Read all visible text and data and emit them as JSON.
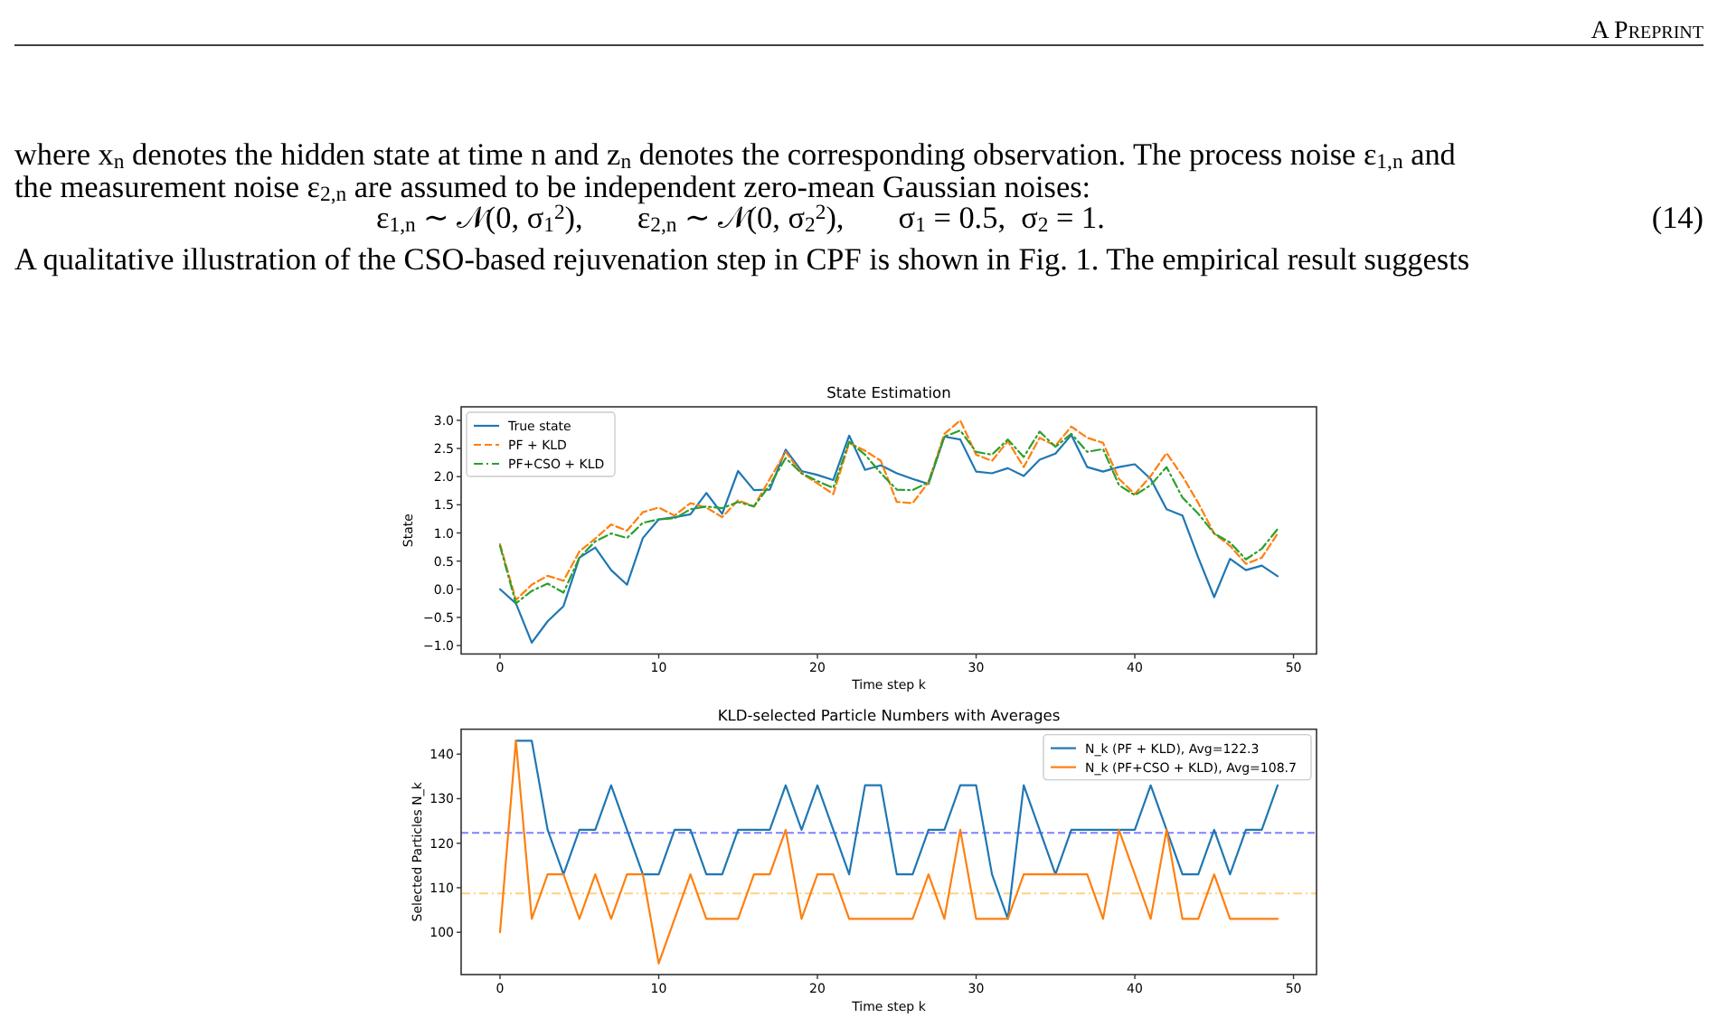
{
  "chart_data": [
    {
      "type": "line",
      "title": "State Estimation",
      "xlabel": "Time step k",
      "ylabel": "State",
      "annotations": [
        "A Preprint",
        "where x$_{n}$ denotes the hidden state at time n and z$_{n}$ denotes the corresponding observation. The process noise ε$_{1,n}$ and",
        "the measurement noise ε$_{2,n}$ are assumed to be independent zero-mean Gaussian noises:",
        "ε$_{1,n}$ ∼ 𝒩(0, σ$_{1}$$^{2}$),       ε$_{2,n}$ ∼ 𝒩(0, σ$_{2}$$^{2}$),       σ$_{1}$ = 0.5,  σ$_{2}$ = 1.",
        "(14)",
        "A qualitative illustration of the CSO-based rejuvenation step in CPF is shown in Fig. 1. The empirical result suggests"
      ],
      "x": [
        0,
        1,
        2,
        3,
        4,
        5,
        6,
        7,
        8,
        9,
        10,
        11,
        12,
        13,
        14,
        15,
        16,
        17,
        18,
        19,
        20,
        21,
        22,
        23,
        24,
        25,
        26,
        27,
        28,
        29,
        30,
        31,
        32,
        33,
        34,
        35,
        36,
        37,
        38,
        39,
        40,
        41,
        42,
        43,
        44,
        45,
        46,
        47,
        48,
        49
      ],
      "xlim": [
        -2.45,
        51.45
      ],
      "xticks": [
        0,
        10,
        20,
        30,
        40,
        50
      ],
      "ylim": [
        -1.15,
        3.24
      ],
      "yticks": [
        {
          "value": -1,
          "label": "−1.0"
        },
        {
          "value": -0.5,
          "label": "−0.5"
        },
        {
          "value": 0,
          "label": "0.0"
        },
        {
          "value": 0.5,
          "label": "0.5"
        },
        {
          "value": 1,
          "label": "1.0"
        },
        {
          "value": 1.5,
          "label": "1.5"
        },
        {
          "value": 2,
          "label": "2.0"
        },
        {
          "value": 2.5,
          "label": "2.5"
        },
        {
          "value": 3,
          "label": "3.0"
        }
      ],
      "legend": "top left",
      "series": [
        {
          "name": "True state",
          "color": "#1f77b4",
          "line_style": "solid",
          "values": [
            0.0,
            -0.25,
            -0.95,
            -0.57,
            -0.3,
            0.56,
            0.74,
            0.34,
            0.08,
            0.91,
            1.24,
            1.28,
            1.33,
            1.71,
            1.34,
            2.1,
            1.76,
            1.77,
            2.48,
            2.1,
            2.03,
            1.94,
            2.73,
            2.12,
            2.2,
            2.06,
            1.96,
            1.87,
            2.71,
            2.66,
            2.09,
            2.06,
            2.15,
            2.01,
            2.3,
            2.41,
            2.74,
            2.17,
            2.09,
            2.17,
            2.22,
            1.96,
            1.42,
            1.31,
            0.56,
            -0.14,
            0.54,
            0.34,
            0.42,
            0.23
          ]
        },
        {
          "name": "PF + KLD",
          "color": "#ff7f0e",
          "line_style": "dashed",
          "values": [
            0.8,
            -0.19,
            0.08,
            0.24,
            0.15,
            0.67,
            0.9,
            1.15,
            1.04,
            1.37,
            1.45,
            1.31,
            1.53,
            1.45,
            1.28,
            1.58,
            1.47,
            1.96,
            2.44,
            2.06,
            1.88,
            1.69,
            2.6,
            2.46,
            2.28,
            1.55,
            1.53,
            1.9,
            2.76,
            3.0,
            2.39,
            2.28,
            2.63,
            2.17,
            2.69,
            2.55,
            2.89,
            2.69,
            2.6,
            1.96,
            1.69,
            2.01,
            2.42,
            2.01,
            1.53,
            0.99,
            0.77,
            0.45,
            0.56,
            0.99
          ]
        },
        {
          "name": "PF+CSO + KLD",
          "color": "#2ca02c",
          "line_style": "dashdot",
          "values": [
            0.77,
            -0.25,
            -0.03,
            0.1,
            -0.06,
            0.56,
            0.85,
            0.99,
            0.91,
            1.18,
            1.24,
            1.26,
            1.42,
            1.47,
            1.44,
            1.55,
            1.47,
            1.85,
            2.33,
            2.06,
            1.92,
            1.8,
            2.62,
            2.39,
            2.06,
            1.77,
            1.76,
            1.9,
            2.71,
            2.82,
            2.44,
            2.39,
            2.66,
            2.35,
            2.8,
            2.53,
            2.76,
            2.44,
            2.49,
            1.85,
            1.67,
            1.85,
            2.17,
            1.63,
            1.34,
            0.99,
            0.83,
            0.53,
            0.72,
            1.07
          ]
        }
      ]
    },
    {
      "type": "line",
      "title": "KLD-selected Particle Numbers with Averages",
      "xlabel": "Time step k",
      "ylabel": "Selected Particles N_k",
      "x": [
        0,
        1,
        2,
        3,
        4,
        5,
        6,
        7,
        8,
        9,
        10,
        11,
        12,
        13,
        14,
        15,
        16,
        17,
        18,
        19,
        20,
        21,
        22,
        23,
        24,
        25,
        26,
        27,
        28,
        29,
        30,
        31,
        32,
        33,
        34,
        35,
        36,
        37,
        38,
        39,
        40,
        41,
        42,
        43,
        44,
        45,
        46,
        47,
        48,
        49
      ],
      "xlim": [
        -2.45,
        51.45
      ],
      "xticks": [
        0,
        10,
        20,
        30,
        40,
        50
      ],
      "ylim": [
        90.5,
        145.6
      ],
      "yticks": [
        100,
        110,
        120,
        130,
        140
      ],
      "legend": "top right",
      "series": [
        {
          "name": "N_k (PF + KLD), Avg=122.3",
          "color": "#1f77b4",
          "values": [
            null,
            143,
            143,
            123,
            113,
            123,
            123,
            133,
            123,
            113,
            113,
            123,
            123,
            113,
            113,
            123,
            123,
            123,
            133,
            123,
            133,
            123,
            113,
            133,
            133,
            113,
            113,
            123,
            123,
            133,
            133,
            113,
            103,
            133,
            123,
            113,
            123,
            123,
            123,
            123,
            123,
            133,
            123,
            113,
            113,
            123,
            113,
            123,
            123,
            133
          ]
        },
        {
          "name": "N_k (PF+CSO + KLD), Avg=108.7",
          "color": "#ff7f0e",
          "values": [
            100,
            143,
            103,
            113,
            113,
            103,
            113,
            103,
            113,
            113,
            93,
            103,
            113,
            103,
            103,
            103,
            113,
            113,
            123,
            103,
            113,
            113,
            103,
            103,
            103,
            103,
            103,
            113,
            103,
            123,
            103,
            103,
            103,
            113,
            113,
            113,
            113,
            113,
            103,
            123,
            113,
            103,
            123,
            103,
            103,
            113,
            103,
            103,
            103,
            103
          ]
        }
      ],
      "ref_lines": [
        {
          "axis": "y",
          "value": 122.3,
          "color": "#8080ff",
          "line_style": "dashed"
        },
        {
          "axis": "y",
          "value": 108.7,
          "color": "#ffd280",
          "line_style": "dashdot"
        }
      ]
    }
  ]
}
